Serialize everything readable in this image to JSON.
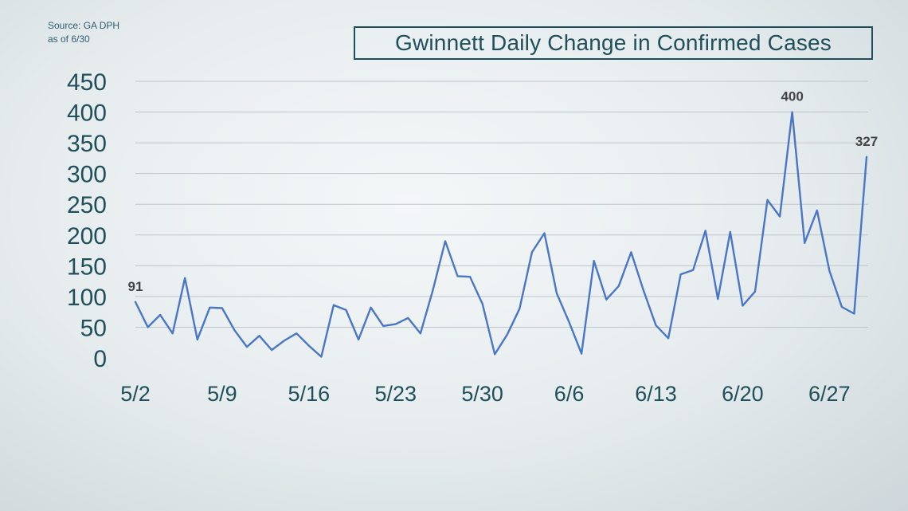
{
  "source": {
    "line1": "Source: GA DPH",
    "line2": "as of 6/30"
  },
  "chart_data": {
    "type": "line",
    "title": "Gwinnett Daily Change in Confirmed Cases",
    "xlabel": "",
    "ylabel": "",
    "ylim": [
      0,
      450
    ],
    "yticks": [
      0,
      50,
      100,
      150,
      200,
      250,
      300,
      350,
      400,
      450
    ],
    "grid": true,
    "x_tick_labels": [
      "5/2",
      "5/9",
      "5/16",
      "5/23",
      "5/30",
      "6/6",
      "6/13",
      "6/20",
      "6/27"
    ],
    "x_tick_indices": [
      0,
      7,
      14,
      21,
      28,
      35,
      42,
      49,
      56
    ],
    "line_color": "#4a76c9",
    "series": [
      {
        "x": [
          "5/2",
          "5/3",
          "5/4",
          "5/5",
          "5/6",
          "5/7",
          "5/8",
          "5/9",
          "5/10",
          "5/11",
          "5/12",
          "5/13",
          "5/14",
          "5/15",
          "5/16",
          "5/17",
          "5/18",
          "5/19",
          "5/20",
          "5/21",
          "5/22",
          "5/23",
          "5/24",
          "5/25",
          "5/26",
          "5/27",
          "5/28",
          "5/29",
          "5/30",
          "5/31",
          "6/1",
          "6/2",
          "6/3",
          "6/4",
          "6/5",
          "6/6",
          "6/7",
          "6/8",
          "6/9",
          "6/10",
          "6/11",
          "6/12",
          "6/13",
          "6/14",
          "6/15",
          "6/16",
          "6/17",
          "6/18",
          "6/19",
          "6/20",
          "6/21",
          "6/22",
          "6/23",
          "6/24",
          "6/25",
          "6/26",
          "6/27",
          "6/28",
          "6/29",
          "6/30"
        ],
        "values": [
          91,
          50,
          70,
          40,
          130,
          30,
          82,
          81,
          45,
          18,
          36,
          13,
          28,
          40,
          20,
          2,
          86,
          78,
          30,
          82,
          52,
          55,
          65,
          40,
          110,
          190,
          133,
          132,
          88,
          6,
          38,
          80,
          172,
          203,
          105,
          58,
          7,
          158,
          95,
          117,
          172,
          110,
          53,
          32,
          136,
          143,
          207,
          96,
          205,
          85,
          108,
          257,
          230,
          400,
          187,
          240,
          142,
          83,
          72,
          327
        ]
      }
    ],
    "data_labels": [
      {
        "index": 0,
        "text": "91"
      },
      {
        "index": 53,
        "text": "400"
      },
      {
        "index": 59,
        "text": "327"
      }
    ]
  }
}
